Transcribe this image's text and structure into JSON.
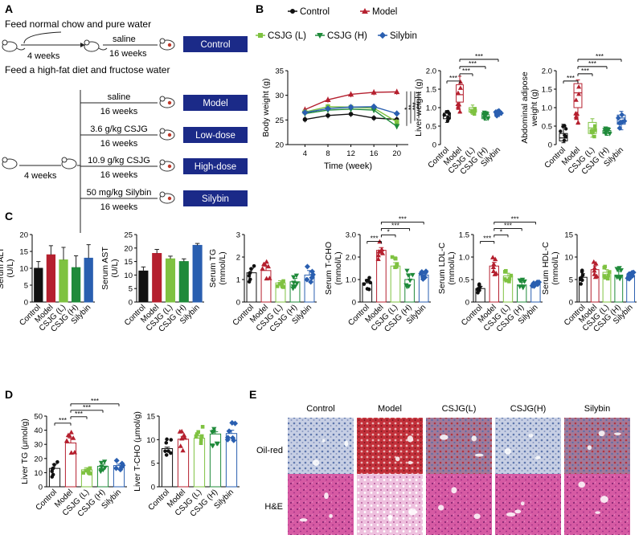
{
  "panel_labels": {
    "a": "A",
    "b": "B",
    "c": "C",
    "d": "D",
    "e": "E"
  },
  "colors": {
    "control": "#111111",
    "model": "#b5202f",
    "csjg_l": "#7fc241",
    "csjg_h": "#1f8a3a",
    "silybin": "#2a5fb0",
    "group_box": "#1b2a88"
  },
  "schematic": {
    "line1": "Feed normal chow and pure water",
    "line2": "Feed a high-fat diet and fructose water",
    "four_weeks_1": "4 weeks",
    "four_weeks_2": "4 weeks",
    "saline_1": "saline",
    "sixteen_1": "16 weeks",
    "arms": [
      {
        "treat": "saline",
        "duration": "16 weeks",
        "group": "Model"
      },
      {
        "treat": "3.6 g/kg CSJG",
        "duration": "16 weeks",
        "group": "Low-dose"
      },
      {
        "treat": "10.9 g/kg CSJG",
        "duration": "16 weeks",
        "group": "High-dose"
      },
      {
        "treat": "50 mg/kg Silybin",
        "duration": "16 weeks",
        "group": "Silybin"
      }
    ],
    "control_group": "Control"
  },
  "legend": [
    "Control",
    "Model",
    "CSJG (L)",
    "CSJG (H)",
    "Silybin"
  ],
  "categories": [
    "Control",
    "Model",
    "CSJG (L)",
    "CSJG (H)",
    "Silybin"
  ],
  "micro": {
    "columns": [
      "Control",
      "Model",
      "CSJG(L)",
      "CSJG(H)",
      "Silybin"
    ],
    "rows": [
      "Oil-red",
      "H&E"
    ]
  },
  "chart_data": [
    {
      "id": "body_weight",
      "type": "line",
      "xlabel": "Time (week)",
      "ylabel": "Body weight (g)",
      "x": [
        4,
        8,
        12,
        16,
        20
      ],
      "xlim": [
        1,
        22
      ],
      "ylim": [
        20,
        35
      ],
      "xticks": [
        4,
        8,
        12,
        16,
        20
      ],
      "yticks": [
        20,
        25,
        30,
        35
      ],
      "series": [
        {
          "name": "Control",
          "values": [
            25.1,
            25.9,
            26.2,
            25.4,
            25.1
          ]
        },
        {
          "name": "Model",
          "values": [
            27.1,
            29.1,
            30.2,
            30.6,
            30.7
          ]
        },
        {
          "name": "CSJG (L)",
          "values": [
            26.6,
            27.7,
            27.6,
            27.4,
            24.6
          ]
        },
        {
          "name": "CSJG (H)",
          "values": [
            26.3,
            27.0,
            27.2,
            27.0,
            23.7
          ]
        },
        {
          "name": "Silybin",
          "values": [
            26.5,
            27.3,
            27.6,
            27.7,
            26.3
          ]
        }
      ],
      "significance": [
        "*",
        "**",
        "***",
        "***"
      ]
    },
    {
      "id": "liver_weight",
      "type": "box",
      "ylabel": "Liver weight (g)",
      "ylim": [
        0,
        2.0
      ],
      "yticks": [
        0,
        0.5,
        1.0,
        1.5,
        2.0
      ],
      "boxes": [
        {
          "name": "Control",
          "min": 0.6,
          "q1": 0.7,
          "median": 0.78,
          "q3": 0.85,
          "max": 0.92
        },
        {
          "name": "Model",
          "min": 0.85,
          "q1": 1.15,
          "median": 1.35,
          "q3": 1.62,
          "max": 1.85
        },
        {
          "name": "CSJG (L)",
          "min": 0.82,
          "q1": 0.88,
          "median": 0.95,
          "q3": 1.0,
          "max": 1.07
        },
        {
          "name": "CSJG (H)",
          "min": 0.66,
          "q1": 0.7,
          "median": 0.75,
          "q3": 0.82,
          "max": 0.88
        },
        {
          "name": "Silybin",
          "min": 0.76,
          "q1": 0.8,
          "median": 0.86,
          "q3": 0.9,
          "max": 0.95
        }
      ],
      "significance": [
        {
          "from": 0,
          "to": 1,
          "label": "***"
        },
        {
          "from": 1,
          "to": 2,
          "label": "***"
        },
        {
          "from": 1,
          "to": 3,
          "label": "***"
        },
        {
          "from": 1,
          "to": 4,
          "label": "***"
        }
      ]
    },
    {
      "id": "adipose_weight",
      "type": "box",
      "ylabel": "Abdominal adipose weight (g)",
      "ylim": [
        0,
        2.0
      ],
      "yticks": [
        0,
        0.5,
        1.0,
        1.5,
        2.0
      ],
      "boxes": [
        {
          "name": "Control",
          "min": 0.05,
          "q1": 0.1,
          "median": 0.18,
          "q3": 0.3,
          "max": 0.55
        },
        {
          "name": "Model",
          "min": 0.55,
          "q1": 1.0,
          "median": 1.4,
          "q3": 1.65,
          "max": 1.75
        },
        {
          "name": "CSJG (L)",
          "min": 0.2,
          "q1": 0.3,
          "median": 0.45,
          "q3": 0.6,
          "max": 0.7
        },
        {
          "name": "CSJG (H)",
          "min": 0.25,
          "q1": 0.3,
          "median": 0.34,
          "q3": 0.38,
          "max": 0.45
        },
        {
          "name": "Silybin",
          "min": 0.4,
          "q1": 0.55,
          "median": 0.72,
          "q3": 0.8,
          "max": 0.9
        }
      ],
      "significance": [
        {
          "from": 0,
          "to": 1,
          "label": "***"
        },
        {
          "from": 1,
          "to": 2,
          "label": "***"
        },
        {
          "from": 1,
          "to": 3,
          "label": "***"
        },
        {
          "from": 1,
          "to": 4,
          "label": "***"
        }
      ]
    },
    {
      "id": "alt",
      "type": "bar",
      "style": "solid",
      "ylabel": "Serum ALT (U/L)",
      "ylim": [
        0,
        20
      ],
      "yticks": [
        0,
        5,
        10,
        15,
        20
      ],
      "values": [
        10.0,
        14.0,
        12.5,
        10.2,
        13.0
      ],
      "errors": [
        2.0,
        2.7,
        3.7,
        3.5,
        4.0
      ]
    },
    {
      "id": "ast",
      "type": "bar",
      "style": "solid",
      "ylabel": "Serum AST (U/L)",
      "ylim": [
        0,
        25
      ],
      "yticks": [
        0,
        5,
        10,
        15,
        20,
        25
      ],
      "values": [
        11.5,
        18.0,
        16.0,
        15.0,
        21.0
      ],
      "errors": [
        1.5,
        1.5,
        1.0,
        1.0,
        0.7
      ]
    },
    {
      "id": "tg",
      "type": "bar",
      "style": "open",
      "ylabel": "Serum TG (mmol/L)",
      "ylim": [
        0,
        3
      ],
      "yticks": [
        0,
        1,
        2,
        3
      ],
      "values": [
        1.3,
        1.4,
        0.85,
        0.9,
        1.2
      ],
      "errors": [
        0.2,
        0.2,
        0.1,
        0.15,
        0.2
      ]
    },
    {
      "id": "tcho",
      "type": "bar",
      "style": "open",
      "ylabel": "Serum T-CHO (mmol/L)",
      "ylim": [
        0,
        3
      ],
      "yticks": [
        0,
        1,
        2,
        3
      ],
      "values": [
        0.85,
        2.3,
        1.6,
        1.0,
        1.2
      ],
      "errors": [
        0.15,
        0.12,
        0.15,
        0.2,
        0.15
      ],
      "significance": [
        {
          "from": 0,
          "to": 1,
          "label": "***"
        },
        {
          "from": 1,
          "to": 2,
          "label": "*"
        },
        {
          "from": 1,
          "to": 3,
          "label": "***"
        },
        {
          "from": 1,
          "to": 4,
          "label": "***"
        }
      ]
    },
    {
      "id": "ldl",
      "type": "bar",
      "style": "open",
      "ylabel": "Serum LDL-C (mmol/L)",
      "ylim": [
        0,
        1.5
      ],
      "yticks": [
        0,
        0.5,
        1.0,
        1.5
      ],
      "values": [
        0.3,
        0.8,
        0.58,
        0.38,
        0.4
      ],
      "errors": [
        0.05,
        0.08,
        0.06,
        0.06,
        0.04
      ],
      "significance": [
        {
          "from": 0,
          "to": 1,
          "label": "***"
        },
        {
          "from": 1,
          "to": 2,
          "label": "*"
        },
        {
          "from": 1,
          "to": 3,
          "label": "***"
        },
        {
          "from": 1,
          "to": 4,
          "label": "***"
        }
      ]
    },
    {
      "id": "hdl",
      "type": "bar",
      "style": "open",
      "ylabel": "Serum HDL-C (mmol/L)",
      "ylim": [
        0,
        15
      ],
      "yticks": [
        0,
        5,
        10,
        15
      ],
      "values": [
        5.5,
        7.2,
        6.6,
        6.0,
        5.9
      ],
      "errors": [
        0.8,
        0.8,
        0.6,
        0.8,
        0.8
      ]
    },
    {
      "id": "liver_tg",
      "type": "bar",
      "style": "open",
      "ylabel": "Liver TG (μmol/g)",
      "ylim": [
        0,
        50
      ],
      "yticks": [
        0,
        10,
        20,
        30,
        40,
        50
      ],
      "values": [
        13.0,
        31.0,
        12.0,
        14.5,
        15.0
      ],
      "errors": [
        3.0,
        3.5,
        1.5,
        1.5,
        1.0
      ],
      "significance": [
        {
          "from": 0,
          "to": 1,
          "label": "***"
        },
        {
          "from": 1,
          "to": 2,
          "label": "***"
        },
        {
          "from": 1,
          "to": 3,
          "label": "***"
        },
        {
          "from": 1,
          "to": 4,
          "label": "***"
        }
      ]
    },
    {
      "id": "liver_tcho",
      "type": "bar",
      "style": "open",
      "ylabel": "Liver T-CHO (μmol/g)",
      "ylim": [
        0,
        15
      ],
      "yticks": [
        0,
        5,
        10,
        15
      ],
      "values": [
        8.1,
        10.1,
        10.3,
        11.2,
        11.3
      ],
      "errors": [
        0.3,
        0.6,
        0.6,
        0.5,
        0.7
      ]
    }
  ]
}
